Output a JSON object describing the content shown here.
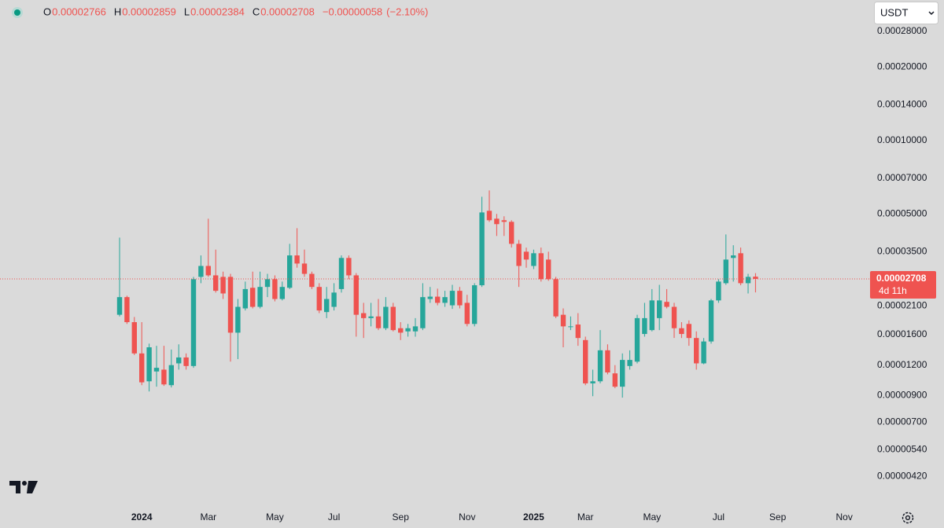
{
  "chart_data": {
    "type": "candlestick",
    "header": {
      "items": [
        {
          "key": "O",
          "value": "0.00002766"
        },
        {
          "key": "H",
          "value": "0.00002859"
        },
        {
          "key": "L",
          "value": "0.00002384"
        },
        {
          "key": "C",
          "value": "0.00002708"
        }
      ],
      "change": "−0.00000058",
      "change_pct": "(−2.10%)"
    },
    "currency": "USDT",
    "price_tag": {
      "label": "0.00002708",
      "countdown": "4d 11h"
    },
    "up_color": "#26a69a",
    "down_color": "#ef5350",
    "log_scale": true,
    "grid": false,
    "ylim": [
      3.27e-06,
      0.0003766
    ],
    "yticks": [
      {
        "value": 0.00028,
        "label": "0.00028000"
      },
      {
        "value": 0.0002,
        "label": "0.00020000"
      },
      {
        "value": 0.00014,
        "label": "0.00014000"
      },
      {
        "value": 0.0001,
        "label": "0.00010000"
      },
      {
        "value": 7e-05,
        "label": "0.00007000"
      },
      {
        "value": 5e-05,
        "label": "0.00005000"
      },
      {
        "value": 3.5e-05,
        "label": "0.00003500"
      },
      {
        "value": 2.1e-05,
        "label": "0.00002100"
      },
      {
        "value": 1.6e-05,
        "label": "0.00001600"
      },
      {
        "value": 1.2e-05,
        "label": "0.00001200"
      },
      {
        "value": 9e-06,
        "label": "0.00000900"
      },
      {
        "value": 7e-06,
        "label": "0.00000700"
      },
      {
        "value": 5.4e-06,
        "label": "0.00000540"
      },
      {
        "value": 4.2e-06,
        "label": "0.00000420"
      }
    ],
    "categories": [
      null,
      null,
      null,
      "2024",
      null,
      null,
      null,
      null,
      null,
      null,
      null,
      null,
      "Mar",
      null,
      null,
      null,
      null,
      null,
      null,
      null,
      null,
      "May",
      null,
      null,
      null,
      null,
      null,
      null,
      null,
      "Jul",
      null,
      null,
      null,
      null,
      null,
      null,
      null,
      null,
      "Sep",
      null,
      null,
      null,
      null,
      null,
      null,
      null,
      null,
      "Nov",
      null,
      null,
      null,
      null,
      null,
      null,
      null,
      null,
      "2025",
      null,
      null,
      null,
      null,
      null,
      null,
      "Mar",
      null,
      null,
      null,
      null,
      null,
      null,
      null,
      null,
      "May",
      null,
      null,
      null,
      null,
      null,
      null,
      null,
      null,
      "Jul",
      null,
      null,
      null,
      null,
      null,
      null,
      null,
      "Sep",
      null,
      null,
      null,
      null,
      null,
      null,
      null,
      null,
      "Nov",
      null,
      null
    ],
    "open": [
      1.93e-05,
      2.28e-05,
      1.8e-05,
      1.34e-05,
      1.03e-05,
      1.13e-05,
      1.15e-05,
      9.93e-06,
      1.22e-05,
      1.29e-05,
      1.19e-05,
      2.76e-05,
      3.06e-05,
      2.8e-05,
      2.76e-05,
      2.76e-05,
      1.63e-05,
      2.05e-05,
      2.49e-05,
      2.08e-05,
      2.51e-05,
      2.7e-05,
      2.24e-05,
      2.49e-05,
      3.38e-05,
      3.13e-05,
      2.84e-05,
      2.51e-05,
      1.98e-05,
      2.08e-05,
      2.46e-05,
      3.3e-05,
      2.8e-05,
      1.96e-05,
      1.87e-05,
      1.9e-05,
      1.7e-05,
      2.08e-05,
      1.7e-05,
      1.65e-05,
      1.65e-05,
      1.7e-05,
      2.24e-05,
      2.29e-05,
      2.16e-05,
      2.11e-05,
      2.42e-05,
      2.16e-05,
      1.77e-05,
      2.55e-05,
      5.15e-05,
      4.78e-05,
      4.71e-05,
      4.64e-05,
      3.77e-05,
      3.5e-05,
      3.06e-05,
      3.45e-05,
      3.25e-05,
      2.7e-05,
      1.93e-05,
      1.72e-05,
      1.76e-05,
      1.52e-05,
      1.01e-05,
      1.03e-05,
      1.38e-05,
      1.11e-05,
      9.79e-06,
      1.19e-05,
      1.24e-05,
      1.61e-05,
      1.67e-05,
      1.87e-05,
      2.18e-05,
      2.08e-05,
      1.7e-05,
      1.77e-05,
      1.55e-05,
      1.22e-05,
      1.5e-05,
      2.21e-05,
      2.6e-05,
      3.3e-05,
      3.45e-05,
      2.6e-05,
      2.766e-05,
      null,
      null,
      null,
      null,
      null,
      null,
      null,
      null,
      null,
      null,
      null,
      null,
      null,
      null
    ],
    "high": [
      4e-05,
      2.31e-05,
      1.89e-05,
      1.8e-05,
      1.47e-05,
      1.44e-05,
      1.44e-05,
      1.39e-05,
      1.46e-05,
      1.34e-05,
      2.76e-05,
      3.38e-05,
      4.78e-05,
      3.57e-05,
      2.9e-05,
      2.84e-05,
      2.24e-05,
      2.64e-05,
      2.9e-05,
      2.9e-05,
      2.84e-05,
      2.8e-05,
      2.64e-05,
      3.77e-05,
      4.37e-05,
      3.57e-05,
      2.9e-05,
      2.6e-05,
      2.51e-05,
      2.6e-05,
      3.38e-05,
      3.38e-05,
      2.86e-05,
      2.16e-05,
      2.16e-05,
      2.24e-05,
      2.28e-05,
      2.16e-05,
      1.8e-05,
      1.77e-05,
      1.87e-05,
      2.6e-05,
      2.51e-05,
      2.47e-05,
      2.42e-05,
      2.56e-05,
      2.51e-05,
      2.33e-05,
      2.6e-05,
      5.88e-05,
      6.24e-05,
      5e-05,
      4.89e-05,
      4.71e-05,
      3.91e-05,
      3.64e-05,
      3.57e-05,
      3.64e-05,
      3.5e-05,
      2.76e-05,
      2.05e-05,
      1.9e-05,
      1.96e-05,
      1.57e-05,
      1.15e-05,
      1.67e-05,
      1.46e-05,
      1.2e-05,
      1.34e-05,
      1.38e-05,
      1.93e-05,
      2.16e-05,
      2.46e-05,
      2.56e-05,
      2.46e-05,
      2.16e-05,
      1.8e-05,
      1.83e-05,
      1.65e-05,
      1.55e-05,
      2.24e-05,
      2.7e-05,
      4.12e-05,
      3.72e-05,
      3.64e-05,
      2.84e-05,
      2.859e-05,
      null,
      null,
      null,
      null,
      null,
      null,
      null,
      null,
      null,
      null,
      null,
      null,
      null,
      null
    ],
    "low": [
      1.9e-05,
      1.77e-05,
      1.32e-05,
      9.93e-06,
      9.36e-06,
      9.79e-06,
      9.86e-06,
      9.72e-06,
      1.15e-05,
      1.15e-05,
      1.17e-05,
      2.6e-05,
      2.76e-05,
      2.38e-05,
      2.24e-05,
      1.24e-05,
      1.27e-05,
      2.01e-05,
      2.05e-05,
      2.05e-05,
      2.28e-05,
      2.19e-05,
      2.21e-05,
      2.46e-05,
      3.01e-05,
      2.76e-05,
      2.46e-05,
      1.96e-05,
      1.87e-05,
      2.01e-05,
      2.38e-05,
      2.7e-05,
      1.57e-05,
      1.55e-05,
      1.73e-05,
      1.67e-05,
      1.67e-05,
      1.65e-05,
      1.52e-05,
      1.57e-05,
      1.57e-05,
      1.67e-05,
      2.16e-05,
      2.11e-05,
      2.08e-05,
      2.04e-05,
      2.05e-05,
      1.73e-05,
      1.73e-05,
      2.51e-05,
      4.64e-05,
      4.06e-05,
      4.06e-05,
      3.64e-05,
      2.51e-05,
      3.01e-05,
      2.97e-05,
      2.64e-05,
      2.66e-05,
      1.87e-05,
      1.42e-05,
      1.67e-05,
      1.44e-05,
      9.93e-06,
      8.95e-06,
      1.01e-05,
      1.1e-05,
      9.65e-06,
      8.83e-06,
      1.15e-05,
      1.22e-05,
      1.57e-05,
      1.65e-05,
      1.67e-05,
      2.05e-05,
      1.55e-05,
      1.55e-05,
      1.44e-05,
      1.15e-05,
      1.21e-05,
      1.47e-05,
      2.16e-05,
      2.56e-05,
      2.64e-05,
      2.55e-05,
      2.36e-05,
      2.384e-05,
      null,
      null,
      null,
      null,
      null,
      null,
      null,
      null,
      null,
      null,
      null,
      null,
      null,
      null
    ],
    "close": [
      2.28e-05,
      1.8e-05,
      1.34e-05,
      1.02e-05,
      1.42e-05,
      1.17e-05,
      1e-05,
      1.2e-05,
      1.29e-05,
      1.19e-05,
      2.7e-05,
      3.06e-05,
      2.8e-05,
      2.42e-05,
      2.36e-05,
      1.63e-05,
      2.08e-05,
      2.46e-05,
      2.08e-05,
      2.51e-05,
      2.7e-05,
      2.24e-05,
      2.51e-05,
      3.38e-05,
      3.13e-05,
      2.84e-05,
      2.51e-05,
      2.01e-05,
      2.24e-05,
      2.38e-05,
      3.3e-05,
      2.8e-05,
      1.93e-05,
      1.87e-05,
      1.9e-05,
      1.7e-05,
      2.08e-05,
      1.67e-05,
      1.63e-05,
      1.7e-05,
      1.73e-05,
      2.28e-05,
      2.29e-05,
      2.16e-05,
      2.28e-05,
      2.42e-05,
      2.11e-05,
      1.77e-05,
      2.55e-05,
      5.07e-05,
      4.71e-05,
      4.54e-05,
      4.64e-05,
      3.77e-05,
      3.06e-05,
      3.25e-05,
      3.45e-05,
      2.7e-05,
      2.7e-05,
      1.9e-05,
      1.73e-05,
      1.73e-05,
      1.55e-05,
      1.01e-05,
      1.03e-05,
      1.38e-05,
      1.12e-05,
      9.79e-06,
      1.26e-05,
      1.26e-05,
      1.87e-05,
      1.87e-05,
      2.21e-05,
      2.21e-05,
      2.08e-05,
      1.7e-05,
      1.61e-05,
      1.55e-05,
      1.22e-05,
      1.5e-05,
      2.21e-05,
      2.64e-05,
      3.25e-05,
      3.38e-05,
      2.6e-05,
      2.76e-05,
      2.708e-05,
      null,
      null,
      null,
      null,
      null,
      null,
      null,
      null,
      null,
      null,
      null,
      null,
      null,
      null
    ]
  }
}
